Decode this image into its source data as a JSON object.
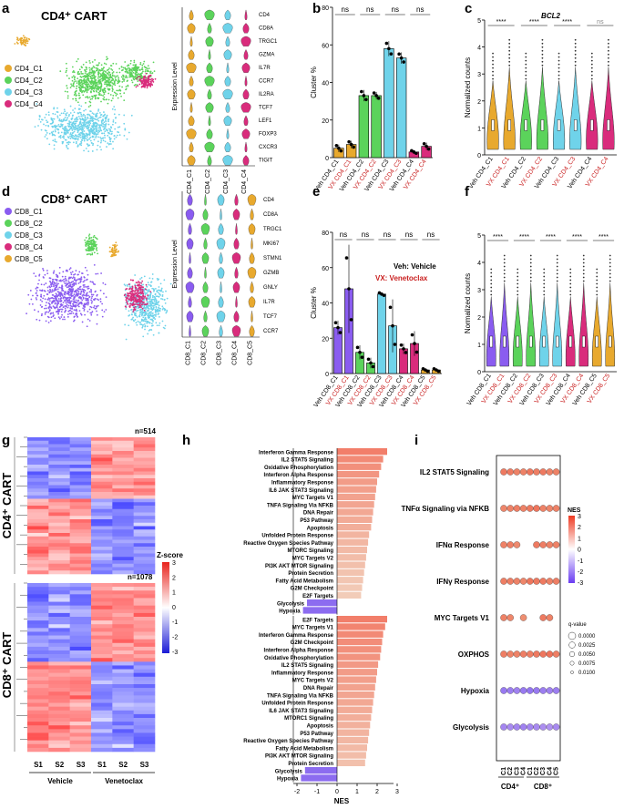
{
  "panels": [
    "a",
    "b",
    "c",
    "d",
    "e",
    "f",
    "g",
    "h",
    "i"
  ],
  "colors": {
    "c1": "#e8a92e",
    "c2": "#5bd35b",
    "c3": "#6fd3ea",
    "c4": "#d92c7c",
    "c5": "#e8a92e",
    "cd8c1": "#8a5cf0",
    "red": "#c92020"
  },
  "a": {
    "title": "CD4⁺ CART",
    "legend": [
      "CD4_C1",
      "CD4_C2",
      "CD4_C3",
      "CD4_C4"
    ],
    "genes": [
      "CD4",
      "CD8A",
      "TRGC1",
      "GZMA",
      "IL7R",
      "CCR7",
      "IL2RA",
      "TCF7",
      "LEF1",
      "FOXP3",
      "CXCR3",
      "TIGIT"
    ],
    "clusters": [
      "CD4_C1",
      "CD4_C2",
      "CD4_C3",
      "CD4_C4"
    ],
    "ylabel": "Expression Level"
  },
  "d": {
    "title": "CD8⁺ CART",
    "legend": [
      "CD8_C1",
      "CD8_C2",
      "CD8_C3",
      "CD8_C4",
      "CD8_C5"
    ],
    "genes": [
      "CD4",
      "CD8A",
      "TRGC1",
      "MKI67",
      "STMN1",
      "GZMB",
      "GNLY",
      "IL7R",
      "TCF7",
      "CCR7"
    ],
    "clusters": [
      "CD8_C1",
      "CD8_C2",
      "CD8_C3",
      "CD8_C4",
      "CD8_C5"
    ],
    "ylabel": "Expression Level"
  },
  "b": {
    "ylabel": "Cluster %",
    "sig": [
      "ns",
      "ns",
      "ns",
      "ns"
    ],
    "labels": [
      "Veh CD4_C1",
      "VX CD4_C1",
      "Veh CD4_C2",
      "VX CD4_C2",
      "Veh CD4_C3",
      "VX CD4_C3",
      "Veh CD4_C4",
      "VX CD4_C4"
    ],
    "ticks": [
      "0",
      "20",
      "40",
      "60",
      "80"
    ]
  },
  "c": {
    "title": "BCL2",
    "ylabel": "Normalized counts",
    "sig": [
      "****",
      "****",
      "****",
      "ns"
    ],
    "labels": [
      "Veh CD4_C1",
      "VX CD4_C1",
      "Veh CD4_C2",
      "VX CD4_C2",
      "Veh CD4_C3",
      "VX CD4_C3",
      "Veh CD4_C4",
      "VX CD4_C4"
    ],
    "ticks": [
      "0",
      "1",
      "2",
      "3",
      "4",
      "5"
    ]
  },
  "e": {
    "ylabel": "Cluster %",
    "sig": [
      "ns",
      "ns",
      "ns",
      "ns",
      "ns"
    ],
    "veh": "Veh: Vehicle",
    "vx": "VX: Venetoclax",
    "labels": [
      "Veh CD8_C1",
      "VX CD8_C1",
      "Veh CD8_C2",
      "VX CD8_C2",
      "Veh CD8_C3",
      "VX CD8_C3",
      "Veh CD8_C4",
      "VX CD8_C4",
      "Veh CD8_C5",
      "VX CD8_C5"
    ],
    "ticks": [
      "0",
      "20",
      "40",
      "60",
      "80"
    ]
  },
  "f": {
    "ylabel": "Normalized counts",
    "sig": [
      "****",
      "****",
      "****",
      "****",
      "****"
    ],
    "labels": [
      "Veh CD8_C1",
      "VX CD8_C1",
      "Veh CD8_C2",
      "VX CD8_C2",
      "Veh CD8_C3",
      "VX CD8_C3",
      "Veh CD8_C4",
      "VX CD8_C4",
      "Veh CD8_C5",
      "VX CD8_C5"
    ],
    "ticks": [
      "0",
      "1",
      "2",
      "3",
      "4",
      "5"
    ]
  },
  "g": {
    "n4": "n=514",
    "n8": "n=1078",
    "cd4": "CD4⁺ CART",
    "cd8": "CD8⁺ CART",
    "zscore": "Z-score",
    "zticks": [
      "3",
      "2",
      "1",
      "0",
      "-1",
      "-2",
      "-3"
    ],
    "samples": [
      "S1",
      "S2",
      "S3",
      "S1",
      "S2",
      "S3"
    ],
    "groups": [
      "Vehicle",
      "Venetoclax"
    ]
  },
  "h": {
    "xlabel": "NES",
    "xticks": [
      "-2",
      "-1",
      "0",
      "1",
      "2",
      "3"
    ],
    "top": [
      [
        "Interferon Gamma Response",
        2.5
      ],
      [
        "IL2 STAT5 Signaling",
        2.3
      ],
      [
        "Oxidative Phosphorylation",
        2.2
      ],
      [
        "Interferon Alpha Response",
        2.1
      ],
      [
        "Inflammatory Response",
        2.0
      ],
      [
        "IL6 JAK STAT3 Signaling",
        1.95
      ],
      [
        "MYC Targets V1",
        1.9
      ],
      [
        "TNFA Signaling Via NFKB",
        1.85
      ],
      [
        "DNA Repair",
        1.8
      ],
      [
        "P53 Pathway",
        1.75
      ],
      [
        "Apoptosis",
        1.7
      ],
      [
        "Unfolded Protein Response",
        1.6
      ],
      [
        "Reactive Oxygen Species Pathway",
        1.55
      ],
      [
        "MTORC Signaling",
        1.5
      ],
      [
        "MYC Targets V2",
        1.45
      ],
      [
        "PI3K AKT MTOR Signaling",
        1.4
      ],
      [
        "Protein Secretion",
        1.35
      ],
      [
        "Fatty Acid Metabolism",
        1.3
      ],
      [
        "G2M Checkpoint",
        1.25
      ],
      [
        "E2F Targets",
        1.2
      ],
      [
        "Glycolysis",
        -1.5
      ],
      [
        "Hypoxia",
        -1.7
      ]
    ],
    "bottom": [
      [
        "E2F Targets",
        2.5
      ],
      [
        "MYC Targets V1",
        2.4
      ],
      [
        "Interferon Gamma Response",
        2.3
      ],
      [
        "G2M Checkpoint",
        2.25
      ],
      [
        "Interferon Alpha Response",
        2.2
      ],
      [
        "Oxidative Phosphorylation",
        2.15
      ],
      [
        "IL2 STAT5 Signaling",
        2.05
      ],
      [
        "Inflammatory Response",
        2.0
      ],
      [
        "MYC Targets V2",
        1.95
      ],
      [
        "DNA Repair",
        1.9
      ],
      [
        "TNFA Signaling Via NFKB",
        1.85
      ],
      [
        "Unfolded Protein Response",
        1.8
      ],
      [
        "IL6 JAK STAT3 Signaling",
        1.75
      ],
      [
        "MTORC1 Signaling",
        1.7
      ],
      [
        "Apoptosis",
        1.65
      ],
      [
        "P53 Pathway",
        1.6
      ],
      [
        "Reactive Oxygen Species Pathway",
        1.55
      ],
      [
        "Fatty Acid Metabolism",
        1.5
      ],
      [
        "PI3K AKT MTOR Signaling",
        1.45
      ],
      [
        "Protein Secretion",
        1.4
      ],
      [
        "Glycolysis",
        -1.6
      ],
      [
        "Hypoxia",
        -1.8
      ]
    ]
  },
  "i": {
    "rows": [
      "IL2 STAT5 Signaling",
      "TNFα Signaling via NFKB",
      "IFNα Response",
      "IFNγ Response",
      "MYC Targets V1",
      "OXPHOS",
      "Hypoxia",
      "Glycolysis"
    ],
    "cols": [
      "C1",
      "C2",
      "C3",
      "C4",
      "C1",
      "C2",
      "C3",
      "C4",
      "C5"
    ],
    "cd4": "CD4⁺",
    "cd8": "CD8⁺",
    "nes": "NES",
    "nesticks": [
      "3",
      "2",
      "1",
      "0",
      "-1",
      "-2",
      "-3"
    ],
    "qvalue": "q-value",
    "qticks": [
      "0.0000",
      "0.0025",
      "0.0050",
      "0.0075",
      "0.0100"
    ],
    "values": [
      [
        2.2,
        2.2,
        2.0,
        2.0,
        2.3,
        2.1,
        2.2,
        2.0,
        2.0
      ],
      [
        1.9,
        2.0,
        2.1,
        2.0,
        2.2,
        2.3,
        2.0,
        1.9,
        2.0
      ],
      [
        2.0,
        2.1,
        1.8,
        null,
        null,
        2.2,
        2.1,
        2.0,
        2.0
      ],
      [
        2.1,
        2.1,
        2.0,
        1.9,
        2.3,
        2.2,
        2.2,
        2.0,
        2.1
      ],
      [
        2.0,
        1.9,
        null,
        1.7,
        null,
        null,
        2.2,
        2.0,
        null
      ],
      [
        2.1,
        2.0,
        2.0,
        2.1,
        2.1,
        2.2,
        2.3,
        2.4,
        2.1
      ],
      [
        -2.2,
        -2.1,
        -2.0,
        -2.2,
        -2.3,
        -2.2,
        -2.1,
        -2.0,
        -2.1
      ],
      [
        -1.9,
        -1.8,
        -1.9,
        -2.0,
        -1.9,
        -1.8,
        -1.7,
        -1.6,
        -1.8
      ]
    ]
  }
}
